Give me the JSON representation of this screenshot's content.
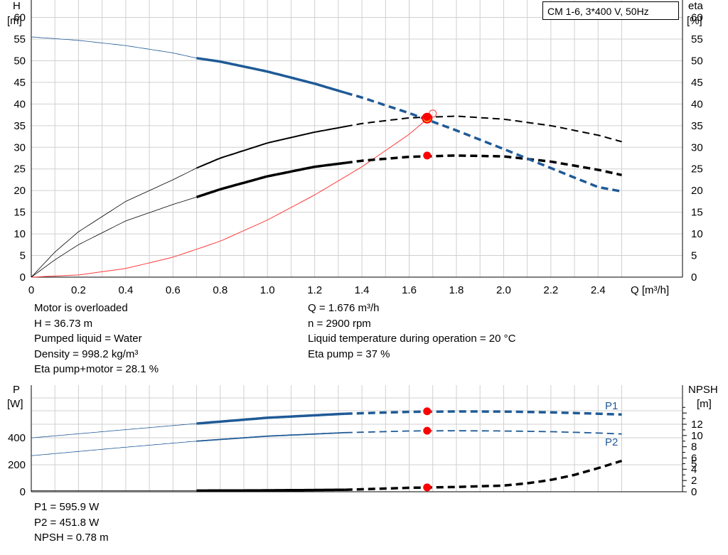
{
  "legend_title": "CM 1-6, 3*400 V, 50Hz",
  "upper_info_left": [
    "Motor is overloaded",
    "H = 36.73 m",
    "Pumped liquid = Water",
    "Density = 998.2 kg/m³",
    "Eta pump+motor = 28.1 %"
  ],
  "upper_info_right": [
    "Q = 1.676 m³/h",
    "n = 2900 rpm",
    "Liquid temperature during operation = 20 °C",
    "Eta pump = 37 %"
  ],
  "lower_info": [
    "P1 = 595.9 W",
    "P2 = 451.8 W",
    "NPSH = 0.78 m"
  ],
  "colors": {
    "head": "#1f5a96",
    "eta": "#000000",
    "system": "#ff3b3b",
    "grid": "#d0d0d0",
    "point": "#ff0000"
  },
  "chart_data": [
    {
      "type": "line",
      "left_axis": {
        "label_top": "H",
        "label_unit": "[m]",
        "ylim": [
          0,
          60
        ],
        "ticks": [
          0,
          5,
          10,
          15,
          20,
          25,
          30,
          35,
          40,
          45,
          50,
          55,
          60
        ]
      },
      "right_axis": {
        "label_top": "eta",
        "label_unit": "[%]",
        "ylim": [
          0,
          60
        ],
        "ticks": [
          0,
          5,
          10,
          15,
          20,
          25,
          30,
          35,
          40,
          45,
          50,
          55,
          60
        ]
      },
      "x_axis": {
        "label": "Q [m³/h]",
        "xlim": [
          0,
          2.5
        ],
        "ticks": [
          "0",
          "0.2",
          "0.4",
          "0.6",
          "0.8",
          "1.0",
          "1.2",
          "1.4",
          "1.6",
          "1.8",
          "2.0",
          "2.2",
          "2.4"
        ]
      },
      "grid": true,
      "series": [
        {
          "key": "head",
          "x": [
            0,
            0.2,
            0.4,
            0.6,
            0.7,
            0.8,
            1.0,
            1.2,
            1.33,
            1.4,
            1.6,
            1.8,
            2.0,
            2.2,
            2.4,
            2.5
          ],
          "y": [
            55.5,
            54.7,
            53.5,
            51.8,
            50.6,
            49.8,
            47.5,
            44.7,
            42.6,
            41.5,
            37.9,
            33.9,
            29.6,
            25.2,
            20.8,
            19.8
          ]
        },
        {
          "key": "eta_pump",
          "x": [
            0,
            0.1,
            0.2,
            0.4,
            0.6,
            0.7,
            0.8,
            1.0,
            1.2,
            1.33,
            1.4,
            1.6,
            1.8,
            2.0,
            2.2,
            2.4,
            2.5
          ],
          "y": [
            0,
            5.8,
            10.5,
            17.5,
            22.5,
            25.2,
            27.5,
            31.0,
            33.5,
            34.8,
            35.5,
            36.8,
            37.2,
            36.5,
            35.0,
            32.8,
            31.3
          ]
        },
        {
          "key": "eta_total",
          "x": [
            0,
            0.1,
            0.2,
            0.4,
            0.6,
            0.7,
            0.8,
            1.0,
            1.2,
            1.33,
            1.4,
            1.6,
            1.8,
            2.0,
            2.2,
            2.4,
            2.5
          ],
          "y": [
            0,
            4.0,
            7.5,
            13.0,
            16.8,
            18.5,
            20.3,
            23.3,
            25.5,
            26.4,
            26.9,
            27.8,
            28.1,
            27.9,
            26.7,
            24.8,
            23.6
          ]
        },
        {
          "key": "system",
          "x": [
            0,
            0.2,
            0.4,
            0.6,
            0.8,
            1.0,
            1.2,
            1.4,
            1.6,
            1.68
          ],
          "y": [
            0,
            0.5,
            2.0,
            4.6,
            8.3,
            13.2,
            19.0,
            25.5,
            33.0,
            36.73
          ]
        }
      ],
      "duty_point": {
        "x": 1.676,
        "h": 36.73,
        "eta_pump": 37,
        "eta_total": 28.1
      }
    },
    {
      "type": "line",
      "left_axis": {
        "label_top": "P",
        "label_unit": "[W]",
        "ylim": [
          0,
          600
        ],
        "ticks": [
          "0",
          "200",
          "400"
        ]
      },
      "right_axis": {
        "label_top": "NPSH",
        "label_unit": "[m]",
        "ylim": [
          0,
          16
        ],
        "ticks": [
          "0",
          "2",
          "4",
          "5",
          "6",
          "8",
          "10",
          "12"
        ]
      },
      "x_axis": {
        "xlim": [
          0,
          2.5
        ]
      },
      "grid": true,
      "series": [
        {
          "key": "P1",
          "name": "P1",
          "x": [
            0,
            0.4,
            0.7,
            1.0,
            1.33,
            1.6,
            1.8,
            2.0,
            2.2,
            2.4,
            2.5
          ],
          "y": [
            399,
            460,
            505,
            548,
            578,
            592,
            595,
            594,
            588,
            578,
            572
          ]
        },
        {
          "key": "P2",
          "name": "P2",
          "x": [
            0,
            0.4,
            0.7,
            1.0,
            1.33,
            1.6,
            1.8,
            2.0,
            2.2,
            2.4,
            2.5
          ],
          "y": [
            267,
            330,
            375,
            412,
            438,
            450,
            452,
            450,
            445,
            435,
            428
          ]
        },
        {
          "key": "npsh",
          "x": [
            0,
            0.7,
            1.0,
            1.33,
            1.6,
            1.8,
            2.0,
            2.1,
            2.2,
            2.3,
            2.4,
            2.5
          ],
          "y": [
            0.18,
            0.2,
            0.25,
            0.35,
            0.7,
            0.85,
            1.1,
            1.5,
            2.1,
            3.0,
            4.2,
            5.5
          ]
        }
      ],
      "duty_point": {
        "x": 1.676,
        "p1": 595.9,
        "p2": 451.8,
        "npsh": 0.78
      }
    }
  ]
}
